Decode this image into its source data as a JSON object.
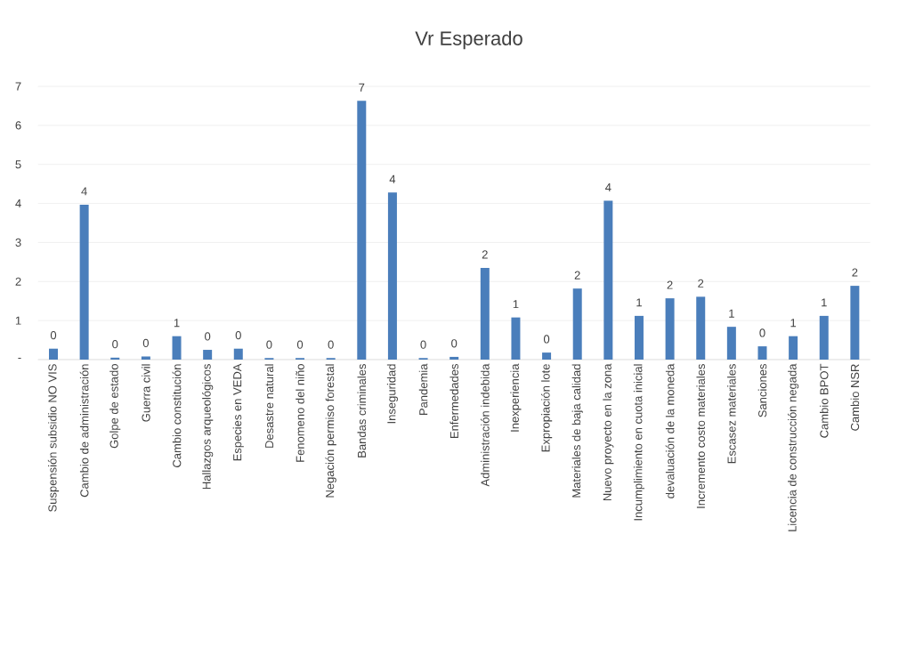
{
  "chart_data": {
    "type": "bar",
    "title": "Vr Esperado",
    "categories": [
      "Suspensión subsidio NO VIS",
      "Cambio de administración",
      "Golpe de estado",
      "Guerra civil",
      "Cambio constitución",
      "Hallazgos arqueológicos",
      "Especies en VEDA",
      "Desastre natural",
      "Fenomeno del niño",
      "Negación permiso forestal",
      "Bandas criminales",
      "Inseguridad",
      "Pandemia",
      "Enfermedades",
      "Administración indebida",
      "Inexperiencia",
      "Expropiación lote",
      "Materiales de baja calidad",
      "Nuevo proyecto en la zona",
      "Incumplimiento en cuota inicial",
      "devaluación de la moneda",
      "Incremento costo materiales",
      "Escasez materiales",
      "Sanciones",
      "Licencia de construcción negada",
      "Cambio BPOT",
      "Cambio NSR"
    ],
    "values": [
      0.28,
      3.97,
      0.05,
      0.08,
      0.6,
      0.25,
      0.28,
      0.04,
      0.04,
      0.04,
      6.63,
      4.28,
      0.04,
      0.07,
      2.35,
      1.08,
      0.18,
      1.82,
      4.07,
      1.12,
      1.57,
      1.61,
      0.84,
      0.34,
      0.6,
      1.12,
      1.89
    ],
    "value_labels": [
      "0",
      "4",
      "0",
      "0",
      "1",
      "0",
      "0",
      "0",
      "0",
      "0",
      "7",
      "4",
      "0",
      "0",
      "2",
      "1",
      "0",
      "2",
      "4",
      "1",
      "2",
      "2",
      "1",
      "0",
      "1",
      "1",
      "2"
    ],
    "color": "#4a7ebb",
    "ylim": [
      0,
      7
    ],
    "yticks": [
      {
        "value": 0,
        "label": "-"
      },
      1,
      2,
      3,
      4,
      5,
      6,
      7
    ],
    "grid": "y"
  }
}
